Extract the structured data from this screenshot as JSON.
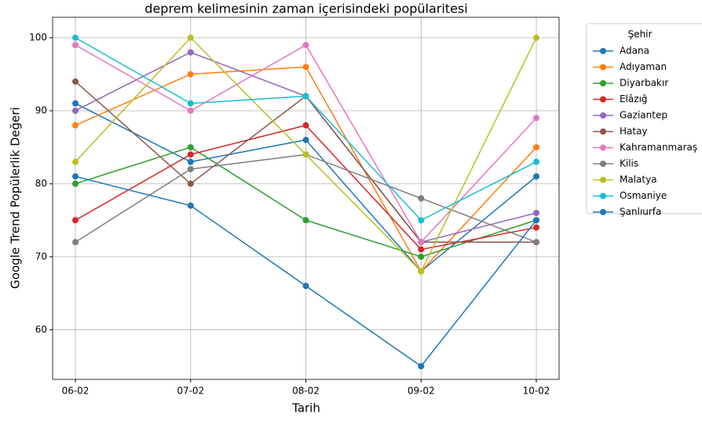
{
  "chart_data": {
    "type": "line",
    "title": "deprem kelimesinin zaman içerisindeki popülaritesi",
    "xlabel": "Tarih",
    "ylabel": "Google Trend Popülerlik Değeri",
    "legend_title": "Şehir",
    "legend": "right",
    "grid": true,
    "categories": [
      "06-02",
      "07-02",
      "08-02",
      "09-02",
      "10-02"
    ],
    "ylim": [
      53.2,
      102.8
    ],
    "yticks": [
      60,
      70,
      80,
      90,
      100
    ],
    "series": [
      {
        "name": "Adana",
        "color": "#1f77b4",
        "values": [
          91,
          83,
          86,
          68,
          81
        ]
      },
      {
        "name": "Adıyaman",
        "color": "#ff7f0e",
        "values": [
          88,
          95,
          96,
          68,
          85
        ]
      },
      {
        "name": "Diyarbakır",
        "color": "#2ca02c",
        "values": [
          80,
          85,
          75,
          70,
          75
        ]
      },
      {
        "name": "Elâzığ",
        "color": "#d62728",
        "values": [
          75,
          84,
          88,
          71,
          74
        ]
      },
      {
        "name": "Gaziantep",
        "color": "#9467bd",
        "values": [
          90,
          98,
          92,
          72,
          76
        ]
      },
      {
        "name": "Hatay",
        "color": "#8c564b",
        "values": [
          94,
          80,
          92,
          72,
          72
        ]
      },
      {
        "name": "Kahramanmaraş",
        "color": "#e377c2",
        "values": [
          99,
          90,
          99,
          72,
          89
        ]
      },
      {
        "name": "Kilis",
        "color": "#7f7f7f",
        "values": [
          72,
          82,
          84,
          78,
          72
        ]
      },
      {
        "name": "Malatya",
        "color": "#bcbd22",
        "values": [
          83,
          100,
          84,
          68,
          100
        ]
      },
      {
        "name": "Osmaniye",
        "color": "#17becf",
        "values": [
          100,
          91,
          92,
          75,
          83
        ]
      },
      {
        "name": "Şanlıurfa",
        "color": "#1f77b4",
        "values": [
          81,
          77,
          66,
          55,
          75
        ]
      }
    ]
  }
}
